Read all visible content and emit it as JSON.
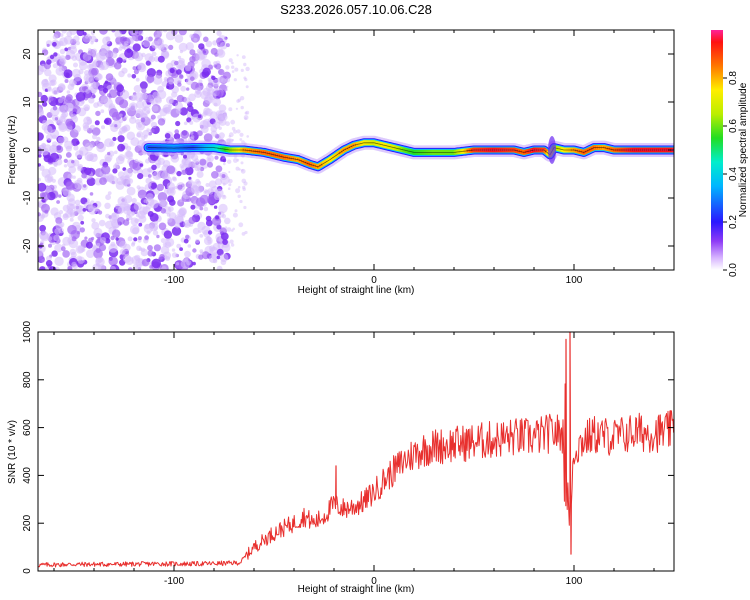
{
  "colors": {
    "snr_line": "#e8302e",
    "frame": "#000000",
    "scatter": "#8f4ff0",
    "background": "#ffffff"
  },
  "chart_data": [
    {
      "type": "heatmap",
      "title": "S233.2026.057.10.06.C28",
      "xlabel": "Height of straight line (km)",
      "ylabel": "Frequency (Hz)",
      "xlim": [
        -168,
        150
      ],
      "ylim": [
        -25,
        25
      ],
      "xticks": [
        -100,
        0,
        100
      ],
      "yticks": [
        -20,
        -10,
        0,
        10,
        20
      ],
      "colorbar": {
        "label": "Normalized spectral amplitude",
        "range": [
          0,
          1
        ],
        "ticks": [
          0,
          0.2,
          0.4,
          0.6,
          0.8
        ],
        "colormap": "rainbow"
      },
      "noise_region_x": [
        -168,
        -75
      ],
      "trace": {
        "x": [
          -113,
          -100,
          -90,
          -80,
          -72,
          -65,
          -55,
          -45,
          -38,
          -32,
          -28,
          -22,
          -15,
          -10,
          -5,
          0,
          5,
          10,
          15,
          20,
          30,
          40,
          50,
          60,
          70,
          75,
          80,
          85,
          88,
          90,
          95,
          100,
          105,
          110,
          115,
          120,
          130,
          140,
          150
        ],
        "frequency": [
          0.5,
          0.4,
          0.5,
          0.5,
          0,
          0,
          -0.5,
          -1.5,
          -2,
          -3,
          -3.5,
          -2,
          0,
          1,
          1.5,
          1.5,
          1,
          0.5,
          0,
          -0.5,
          -0.5,
          -0.5,
          0,
          0,
          0,
          -0.5,
          0,
          0,
          -1,
          0.5,
          0,
          0,
          -0.5,
          0.5,
          0.5,
          0,
          0,
          0,
          0
        ],
        "amplitude": [
          0.25,
          0.3,
          0.25,
          0.4,
          0.6,
          0.8,
          0.85,
          0.85,
          0.8,
          0.85,
          0.8,
          0.75,
          0.8,
          0.8,
          0.75,
          0.7,
          0.75,
          0.7,
          0.6,
          0.55,
          0.6,
          0.6,
          0.9,
          0.95,
          0.9,
          0.85,
          0.95,
          0.9,
          0.7,
          0.6,
          0.75,
          0.8,
          0.85,
          0.85,
          0.8,
          0.85,
          0.95,
          0.95,
          0.95
        ]
      }
    },
    {
      "type": "line",
      "title": "",
      "xlabel": "Height of straight line (km)",
      "ylabel": "SNR (10 * v/v)",
      "xlim": [
        -168,
        150
      ],
      "ylim": [
        0,
        1000
      ],
      "xticks": [
        -100,
        0,
        100
      ],
      "yticks": [
        0,
        200,
        400,
        600,
        800,
        1000
      ],
      "series": [
        {
          "name": "SNR",
          "x": [
            -168,
            -150,
            -130,
            -110,
            -90,
            -75,
            -67,
            -60,
            -55,
            -50,
            -45,
            -40,
            -35,
            -30,
            -25,
            -20,
            -15,
            -10,
            -5,
            0,
            5,
            10,
            15,
            20,
            25,
            30,
            40,
            50,
            60,
            70,
            80,
            90,
            95,
            97,
            98,
            99,
            100,
            105,
            110,
            120,
            130,
            140,
            145,
            150
          ],
          "y": [
            25,
            28,
            28,
            30,
            30,
            32,
            35,
            100,
            130,
            160,
            180,
            200,
            230,
            200,
            230,
            280,
            260,
            270,
            290,
            330,
            380,
            420,
            460,
            490,
            510,
            520,
            530,
            540,
            550,
            560,
            560,
            580,
            570,
            400,
            300,
            330,
            500,
            550,
            570,
            560,
            580,
            580,
            580,
            590
          ]
        }
      ],
      "spikes": [
        {
          "x": -19,
          "y": 440
        },
        {
          "x": 96,
          "y": 970
        },
        {
          "x": 98,
          "y": 1000
        },
        {
          "x": 98.5,
          "y": 70
        },
        {
          "x": 148,
          "y": 670
        }
      ]
    }
  ]
}
